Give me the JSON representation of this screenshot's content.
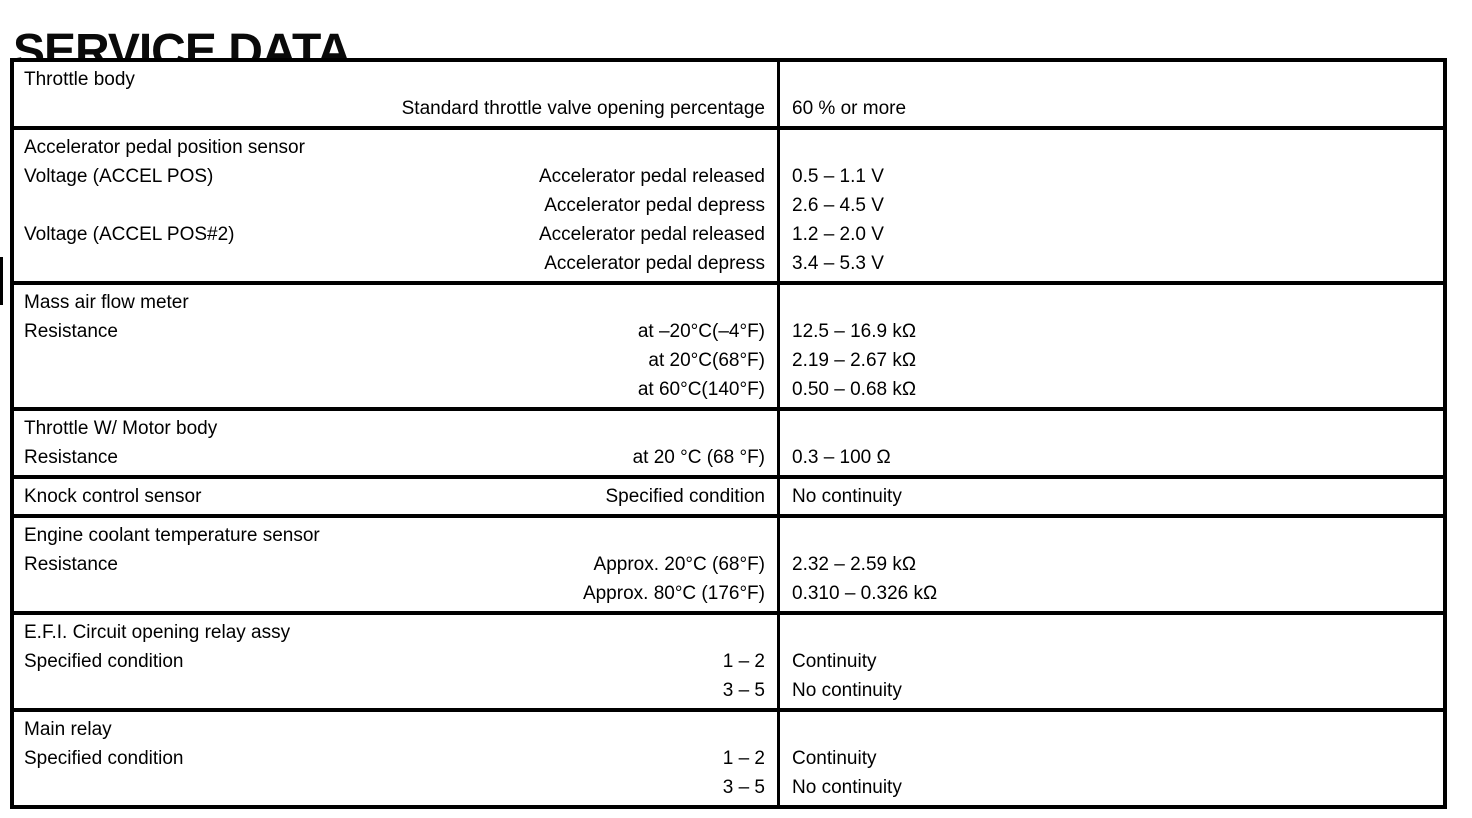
{
  "page": {
    "title": "SERVICE DATA"
  },
  "table": {
    "sections": [
      {
        "id": "throttle-body",
        "lines": [
          {
            "label": "Throttle body",
            "cond": "",
            "val": ""
          },
          {
            "label": "",
            "cond": "Standard throttle valve opening percentage",
            "val": "60 % or more"
          }
        ]
      },
      {
        "id": "accelerator-pedal-position-sensor",
        "lines": [
          {
            "label": "Accelerator pedal position sensor",
            "cond": "",
            "val": ""
          },
          {
            "label": "Voltage (ACCEL POS)",
            "cond": "Accelerator pedal released",
            "val": "0.5 – 1.1 V"
          },
          {
            "label": "",
            "cond": "Accelerator pedal depress",
            "val": "2.6 – 4.5 V"
          },
          {
            "label": "Voltage (ACCEL POS#2)",
            "cond": "Accelerator pedal released",
            "val": "1.2 – 2.0 V"
          },
          {
            "label": "",
            "cond": "Accelerator pedal depress",
            "val": "3.4 – 5.3 V"
          }
        ]
      },
      {
        "id": "mass-air-flow-meter",
        "lines": [
          {
            "label": "Mass air flow meter",
            "cond": "",
            "val": ""
          },
          {
            "label": "Resistance",
            "cond": "at –20°C(–4°F)",
            "val": "12.5 – 16.9 kΩ"
          },
          {
            "label": "",
            "cond": "at 20°C(68°F)",
            "val": "2.19 – 2.67 kΩ"
          },
          {
            "label": "",
            "cond": "at 60°C(140°F)",
            "val": "0.50 – 0.68 kΩ"
          }
        ]
      },
      {
        "id": "throttle-w-motor-body",
        "lines": [
          {
            "label": "Throttle W/ Motor body",
            "cond": "",
            "val": ""
          },
          {
            "label": "Resistance",
            "cond": "at 20 °C (68 °F)",
            "val": "0.3 – 100 Ω"
          }
        ]
      },
      {
        "id": "knock-control-sensor",
        "lines": [
          {
            "label": "Knock control sensor",
            "cond": "Specified condition",
            "val": "No continuity"
          }
        ]
      },
      {
        "id": "engine-coolant-temperature-sensor",
        "lines": [
          {
            "label": "Engine coolant temperature sensor",
            "cond": "",
            "val": ""
          },
          {
            "label": "Resistance",
            "cond": "Approx. 20°C (68°F)",
            "val": "2.32 – 2.59 kΩ"
          },
          {
            "label": "",
            "cond": "Approx. 80°C (176°F)",
            "val": "0.310 – 0.326 kΩ"
          }
        ]
      },
      {
        "id": "efi-circuit-opening-relay-assy",
        "lines": [
          {
            "label": "E.F.I. Circuit opening relay assy",
            "cond": "",
            "val": ""
          },
          {
            "label": "Specified condition",
            "cond": "1 – 2",
            "val": "Continuity"
          },
          {
            "label": "",
            "cond": "3 – 5",
            "val": "No continuity"
          }
        ]
      },
      {
        "id": "main-relay",
        "lines": [
          {
            "label": "Main relay",
            "cond": "",
            "val": ""
          },
          {
            "label": "Specified condition",
            "cond": "1 – 2",
            "val": "Continuity"
          },
          {
            "label": "",
            "cond": "3 – 5",
            "val": "No continuity"
          }
        ]
      }
    ]
  }
}
